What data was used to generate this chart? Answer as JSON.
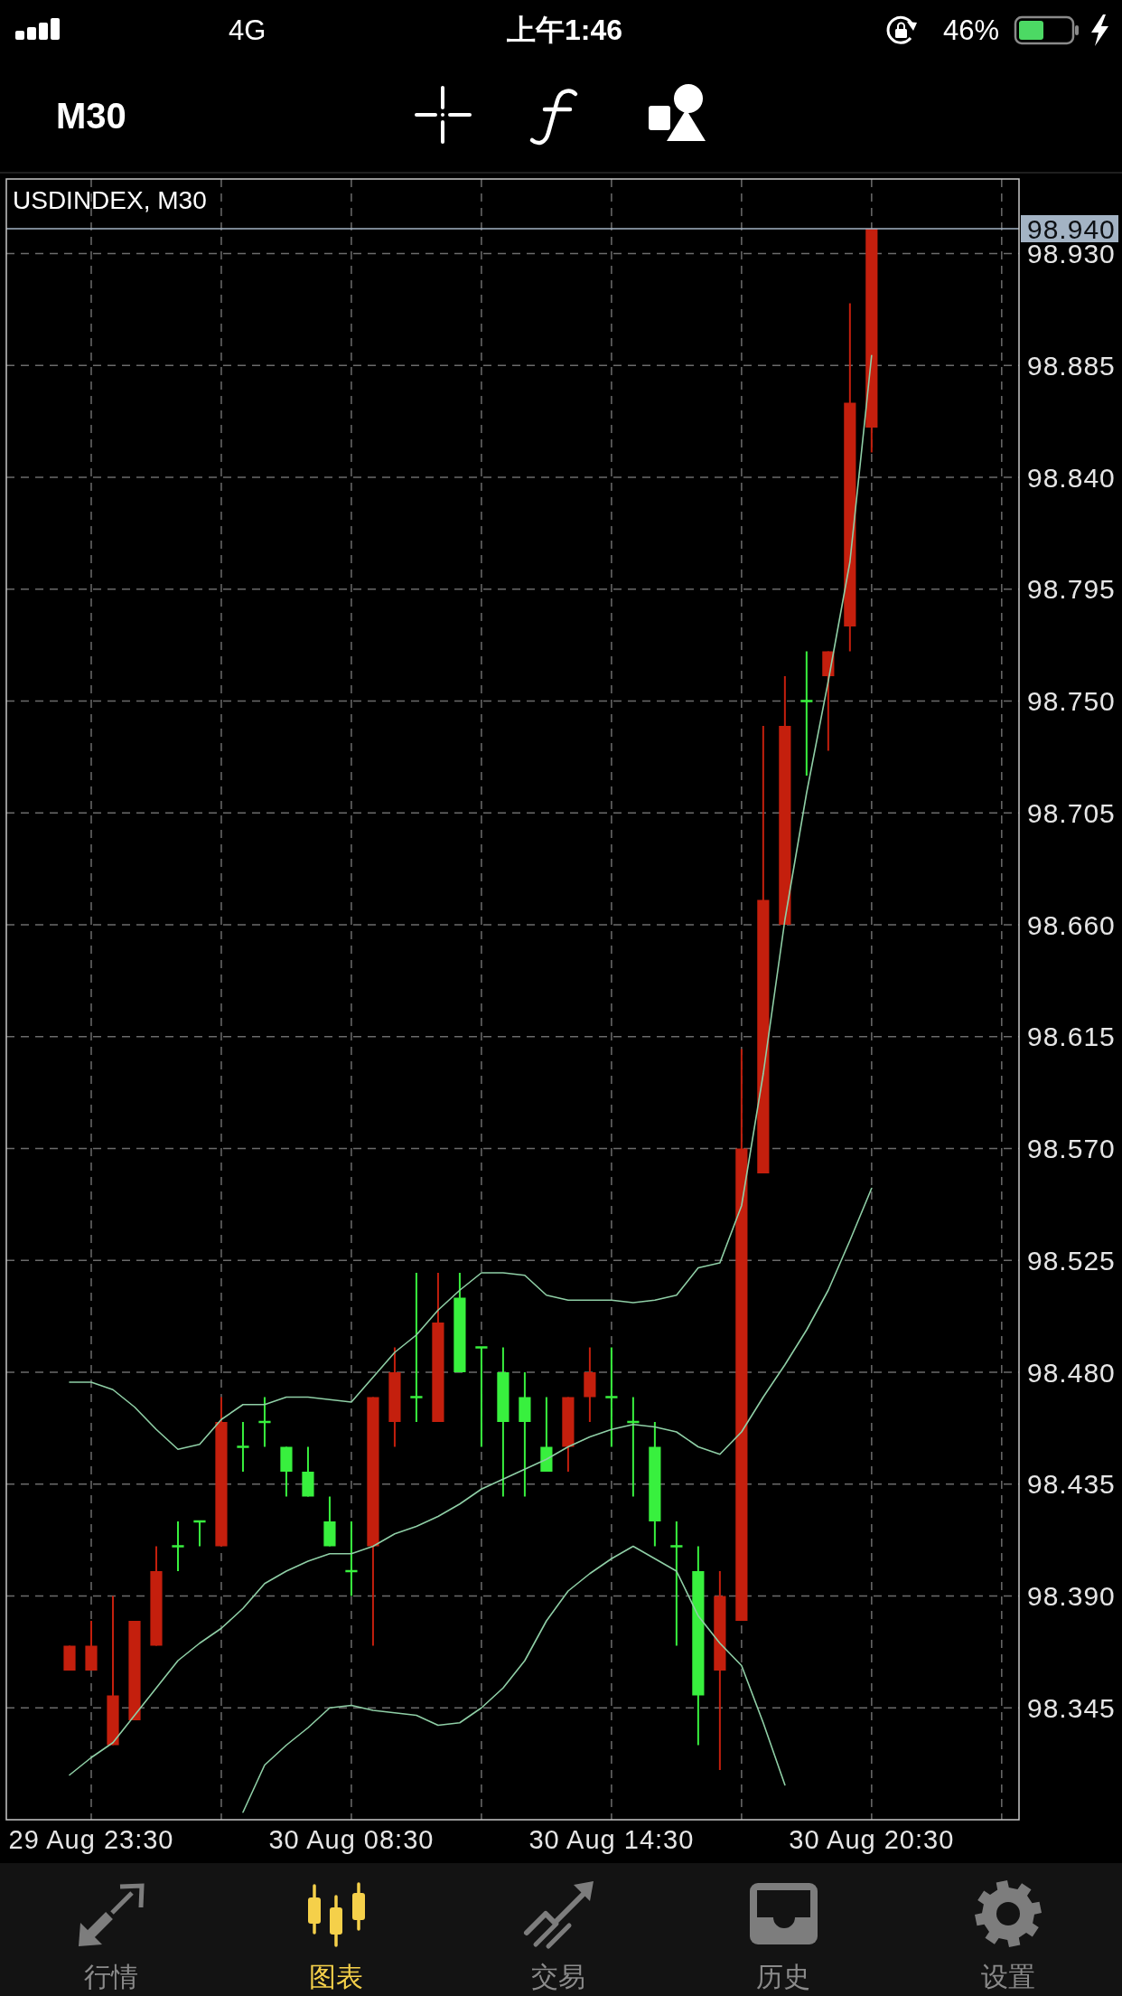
{
  "chart_data": {
    "type": "candlestick",
    "title": "USDINDEX, M30",
    "categories": [
      null,
      "29 Aug 23:30",
      null,
      null,
      null,
      null,
      null,
      null,
      null,
      null,
      null,
      null,
      null,
      "30 Aug 08:30",
      null,
      null,
      null,
      null,
      null,
      null,
      null,
      null,
      null,
      null,
      null,
      "30 Aug 14:30",
      null,
      null,
      null,
      null,
      null,
      null,
      null,
      null,
      null,
      null,
      null,
      "30 Aug 20:30"
    ],
    "ohlc": [
      [
        98.36,
        98.37,
        98.36,
        98.37
      ],
      [
        98.36,
        98.38,
        98.36,
        98.37
      ],
      [
        98.33,
        98.39,
        98.33,
        98.35
      ],
      [
        98.34,
        98.38,
        98.34,
        98.38
      ],
      [
        98.37,
        98.41,
        98.37,
        98.4
      ],
      [
        98.41,
        98.42,
        98.4,
        98.41
      ],
      [
        98.42,
        98.42,
        98.41,
        98.42
      ],
      [
        98.41,
        98.47,
        98.41,
        98.46
      ],
      [
        98.45,
        98.46,
        98.44,
        98.45
      ],
      [
        98.46,
        98.47,
        98.45,
        98.46
      ],
      [
        98.45,
        98.45,
        98.43,
        98.44
      ],
      [
        98.44,
        98.45,
        98.43,
        98.43
      ],
      [
        98.42,
        98.43,
        98.41,
        98.41
      ],
      [
        98.4,
        98.42,
        98.39,
        98.4
      ],
      [
        98.41,
        98.47,
        98.37,
        98.47
      ],
      [
        98.46,
        98.49,
        98.45,
        98.48
      ],
      [
        98.47,
        98.52,
        98.46,
        98.47
      ],
      [
        98.46,
        98.52,
        98.46,
        98.5
      ],
      [
        98.51,
        98.52,
        98.48,
        98.48
      ],
      [
        98.49,
        98.49,
        98.45,
        98.49
      ],
      [
        98.48,
        98.49,
        98.43,
        98.46
      ],
      [
        98.47,
        98.48,
        98.43,
        98.46
      ],
      [
        98.45,
        98.47,
        98.44,
        98.44
      ],
      [
        98.45,
        98.47,
        98.44,
        98.47
      ],
      [
        98.47,
        98.49,
        98.46,
        98.48
      ],
      [
        98.47,
        98.49,
        98.45,
        98.47
      ],
      [
        98.46,
        98.47,
        98.43,
        98.46
      ],
      [
        98.45,
        98.46,
        98.41,
        98.42
      ],
      [
        98.41,
        98.42,
        98.37,
        98.41
      ],
      [
        98.4,
        98.41,
        98.33,
        98.35
      ],
      [
        98.36,
        98.4,
        98.32,
        98.39
      ],
      [
        98.38,
        98.61,
        98.38,
        98.57
      ],
      [
        98.56,
        98.74,
        98.56,
        98.67
      ],
      [
        98.66,
        98.76,
        98.66,
        98.74
      ],
      [
        98.75,
        98.77,
        98.72,
        98.75
      ],
      [
        98.76,
        98.77,
        98.73,
        98.77
      ],
      [
        98.78,
        98.91,
        98.77,
        98.87
      ],
      [
        98.86,
        98.94,
        98.85,
        98.94
      ]
    ],
    "colors": [
      "#c41f0d",
      "#c41f0d",
      "#c41f0d",
      "#c41f0d",
      "#c41f0d",
      "#38f03e",
      "#38f03e",
      "#c41f0d",
      "#38f03e",
      "#38f03e",
      "#38f03e",
      "#38f03e",
      "#38f03e",
      "#38f03e",
      "#c41f0d",
      "#c41f0d",
      "#38f03e",
      "#c41f0d",
      "#38f03e",
      "#38f03e",
      "#38f03e",
      "#38f03e",
      "#38f03e",
      "#c41f0d",
      "#c41f0d",
      "#38f03e",
      "#38f03e",
      "#38f03e",
      "#38f03e",
      "#38f03e",
      "#c41f0d",
      "#c41f0d",
      "#c41f0d",
      "#c41f0d",
      "#38f03e",
      "#c41f0d",
      "#c41f0d",
      "#c41f0d"
    ],
    "series": [
      {
        "type": "line",
        "color": "#8fcfa6",
        "values": [
          98.476,
          98.476,
          98.473,
          98.466,
          98.457,
          98.449,
          98.451,
          98.461,
          98.467,
          98.467,
          98.47,
          98.47,
          98.469,
          98.468,
          98.478,
          98.488,
          98.495,
          98.505,
          98.513,
          98.52,
          98.52,
          98.519,
          98.511,
          98.509,
          98.509,
          98.509,
          98.508,
          98.509,
          98.511,
          98.522,
          98.524,
          98.547,
          98.6,
          98.662,
          98.713,
          98.758,
          98.806,
          98.889
        ]
      },
      {
        "type": "line",
        "color": "#8fcfa6",
        "values": [
          98.318,
          98.325,
          98.331,
          98.342,
          98.353,
          98.364,
          98.371,
          98.377,
          98.385,
          98.395,
          98.4,
          98.404,
          98.407,
          98.407,
          98.41,
          98.415,
          98.418,
          98.422,
          98.427,
          98.433,
          98.437,
          98.441,
          98.445,
          98.45,
          98.454,
          98.457,
          98.459,
          98.458,
          98.456,
          98.45,
          98.447,
          98.456,
          98.47,
          98.483,
          98.497,
          98.513,
          98.533,
          98.554
        ]
      },
      {
        "type": "line",
        "color": "#8fcfa6",
        "values": [
          null,
          null,
          null,
          null,
          null,
          null,
          null,
          null,
          98.303,
          98.322,
          98.33,
          98.337,
          98.345,
          98.346,
          98.344,
          98.343,
          98.342,
          98.338,
          98.339,
          98.345,
          98.353,
          98.364,
          98.38,
          98.392,
          98.399,
          98.405,
          98.41,
          98.405,
          98.4,
          98.382,
          98.371,
          98.362,
          98.339,
          98.314,
          null,
          null,
          null,
          null
        ]
      }
    ],
    "ylim": [
      98.3,
      98.96
    ],
    "yticks": [
      {
        "value": 98.345,
        "label": "98.345"
      },
      {
        "value": 98.39,
        "label": "98.390"
      },
      {
        "value": 98.435,
        "label": "98.435"
      },
      {
        "value": 98.48,
        "label": "98.480"
      },
      {
        "value": 98.525,
        "label": "98.525"
      },
      {
        "value": 98.57,
        "label": "98.570"
      },
      {
        "value": 98.615,
        "label": "98.615"
      },
      {
        "value": 98.66,
        "label": "98.660"
      },
      {
        "value": 98.705,
        "label": "98.705"
      },
      {
        "value": 98.75,
        "label": "98.750"
      },
      {
        "value": 98.795,
        "label": "98.795"
      },
      {
        "value": 98.84,
        "label": "98.840"
      },
      {
        "value": 98.885,
        "label": "98.885"
      },
      {
        "value": 98.93,
        "label": "98.930"
      }
    ],
    "grid": true,
    "ref_lines": [
      {
        "axis": "y",
        "value": 98.94,
        "label": "98.940",
        "color": "#a3b3c4"
      }
    ],
    "annotations": [
      "4G",
      "上午1:46",
      "46%",
      "M30",
      "行情",
      "图表",
      "交易",
      "历史",
      "设置"
    ]
  }
}
